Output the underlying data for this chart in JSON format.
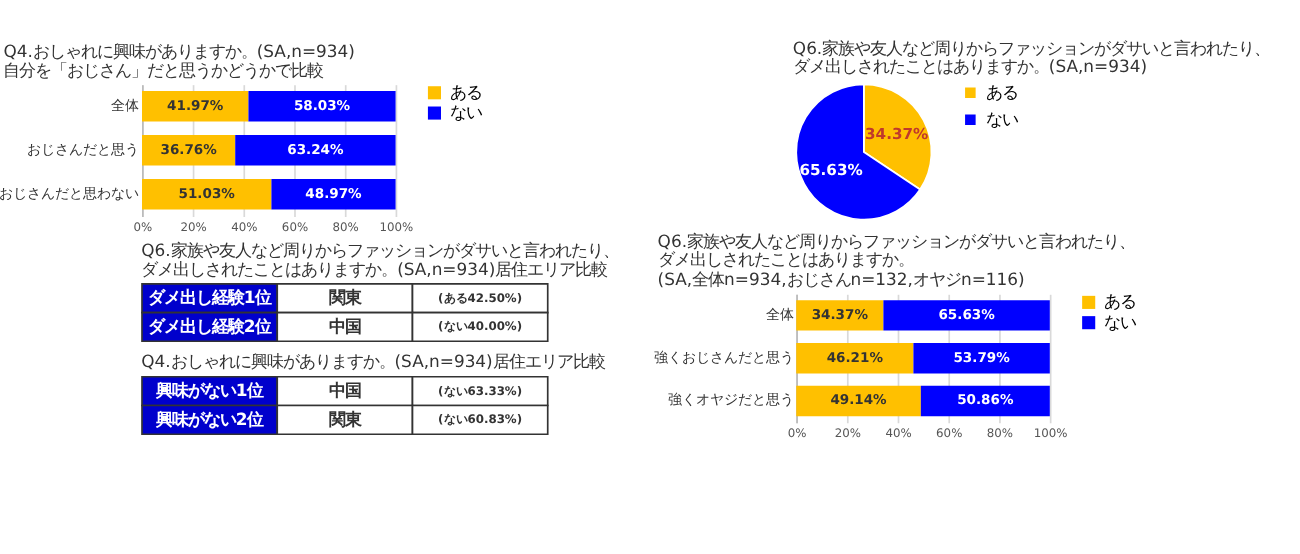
{
  "chart_data": [
    {
      "type": "bar",
      "orientation": "horizontal",
      "stacked": true,
      "title": "Q4.おしゃれに興味がありますか。(SA,n=934)",
      "subtitle": "自分を「おじさん」だと思うかどうかで比較",
      "categories": [
        "全体",
        "おじさんだと思う",
        "おじさんだと思わない"
      ],
      "series": [
        {
          "name": "ある",
          "color": "#ffc000",
          "values": [
            41.97,
            36.76,
            51.03
          ],
          "value_labels": [
            "41.97%",
            "36.76%",
            "51.03%"
          ]
        },
        {
          "name": "ない",
          "color": "#0000ff",
          "values": [
            58.03,
            63.24,
            48.97
          ],
          "value_labels": [
            "58.03%",
            "63.24%",
            "48.97%"
          ]
        }
      ],
      "xlim": [
        0,
        100
      ],
      "xticks": [
        {
          "value": 0,
          "label": "0%"
        },
        {
          "value": 20,
          "label": "20%"
        },
        {
          "value": 40,
          "label": "40%"
        },
        {
          "value": 60,
          "label": "60%"
        },
        {
          "value": 80,
          "label": "80%"
        },
        {
          "value": 100,
          "label": "100%"
        }
      ],
      "grid": "x",
      "legend": "right"
    },
    {
      "type": "pie",
      "title": "Q6.家族や友人など周りからファッションがダサいと言われたり、",
      "subtitle": "ダメ出しされたことはありますか。(SA,n=934)",
      "categories": [
        "ある",
        "ない"
      ],
      "values": [
        34.37,
        65.63
      ],
      "colors": [
        "#ffc000",
        "#0000ff"
      ],
      "value_labels": [
        "34.37%",
        "65.63%"
      ],
      "legend": "right"
    },
    {
      "type": "other",
      "title": "Q6.家族や友人など周りからファッションがダサいと言われたり、",
      "subtitle": "ダメ出しされたことはありますか。(SA,n=934)居住エリア比較",
      "annotations": [
        "ダメ出し経験1位",
        "関東",
        "(ある42.50%)",
        "ダメ出し経験2位",
        "中国",
        "(ない40.00%)"
      ]
    },
    {
      "type": "other",
      "title": "Q4.おしゃれに興味がありますか。(SA,n=934)居住エリア比較",
      "annotations": [
        "興味がない1位",
        "中国",
        "(ない63.33%)",
        "興味がない2位",
        "関東",
        "(ない60.83%)"
      ]
    },
    {
      "type": "bar",
      "orientation": "horizontal",
      "stacked": true,
      "title": "Q6.家族や友人など周りからファッションがダサいと言われたり、",
      "subtitle": "ダメ出しされたことはありますか。 (SA,全体n=934,おじさんn=132,オヤジn=116)",
      "categories": [
        "全体",
        "強くおじさんだと思う",
        "強くオヤジだと思う"
      ],
      "series": [
        {
          "name": "ある",
          "color": "#ffc000",
          "values": [
            34.37,
            46.21,
            49.14
          ],
          "value_labels": [
            "34.37%",
            "46.21%",
            "49.14%"
          ]
        },
        {
          "name": "ない",
          "color": "#0000ff",
          "values": [
            65.63,
            53.79,
            50.86
          ],
          "value_labels": [
            "65.63%",
            "53.79%",
            "50.86%"
          ]
        }
      ],
      "xlim": [
        0,
        100
      ],
      "xticks": [
        {
          "value": 0,
          "label": "0%"
        },
        {
          "value": 20,
          "label": "20%"
        },
        {
          "value": 40,
          "label": "40%"
        },
        {
          "value": 60,
          "label": "60%"
        },
        {
          "value": 80,
          "label": "80%"
        },
        {
          "value": 100,
          "label": "100%"
        }
      ],
      "grid": "x",
      "legend": "right"
    }
  ]
}
